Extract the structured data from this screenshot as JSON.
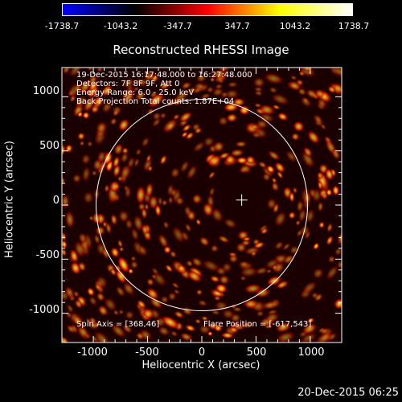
{
  "chart_data": {
    "type": "heatmap",
    "title": "Reconstructed RHESSI Image",
    "xlabel": "Heliocentric X (arcsec)",
    "ylabel": "Heliocentric Y (arcsec)",
    "xlim": [
      -1290,
      1290
    ],
    "ylim": [
      -1270,
      1270
    ],
    "x_ticks": [
      -1000,
      -500,
      0,
      500,
      1000
    ],
    "y_ticks": [
      1000,
      500,
      0,
      -500,
      -1000
    ],
    "colorbar": {
      "min": -1738.7,
      "max": 1738.7,
      "tick_labels": [
        "-1738.7",
        "-1043.2",
        "-347.7",
        "347.7",
        "1043.2",
        "1738.7"
      ],
      "colors": [
        "#0000ff",
        "#000000",
        "#ff0000",
        "#ffff00",
        "#ffffff"
      ]
    },
    "annotations": [
      "19-Dec-2015 16:17:48.000 to 16:27:48.000",
      "Detectors: 7F 8F 9F, Att 0",
      "Energy Range: 6.0 - 25.0 keV",
      "Back Projection    Total counts: 1.87E+04"
    ],
    "spin_axis_label": "Spin Axis = [368,46]",
    "flare_position_label": "Flare Position = [-617,543]",
    "spin_axis": [
      368,
      46
    ],
    "solar_disk_radius_arcsec": 975,
    "solar_disk_center": [
      0,
      0
    ]
  },
  "footer": {
    "date": "20-Dec-2015 06:25"
  }
}
